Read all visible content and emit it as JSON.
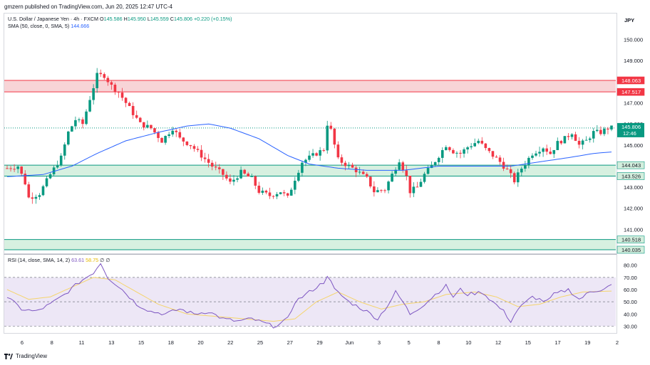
{
  "header": {
    "published_by": "gmzern published on TradingView.com, Jun 20, 2025 12:47 UTC-4"
  },
  "legend": {
    "symbol": "U.S. Dollar / Japanese Yen · 4h · FXCM",
    "o_label": "O",
    "o": "145.586",
    "h_label": "H",
    "h": "145.950",
    "l_label": "L",
    "l": "145.559",
    "c_label": "C",
    "c": "145.806",
    "change": "+0.220 (+0.15%)",
    "sma_label": "SMA (50, close, 0, SMA, 5)",
    "sma_value": "144.666"
  },
  "rsi_legend": {
    "label": "RSI (14, close, SMA, 14, 2)",
    "rsi_value": "63.61",
    "ma_value": "58.75",
    "extra": "∅ ∅"
  },
  "price_axis": {
    "currency": "JPY",
    "ticks": [
      "150.000",
      "149.000",
      "148.000",
      "147.000",
      "146.000",
      "145.000",
      "144.000",
      "143.000",
      "142.000",
      "141.000"
    ],
    "current_price": "145.806",
    "countdown": "12:46"
  },
  "rsi_axis": {
    "ticks": [
      "80.00",
      "70.00",
      "60.00",
      "50.00",
      "40.00",
      "30.00"
    ]
  },
  "time_axis": {
    "labels": [
      "6",
      "8",
      "11",
      "13",
      "15",
      "18",
      "20",
      "22",
      "25",
      "27",
      "29",
      "Jun",
      "3",
      "5",
      "8",
      "10",
      "12",
      "15",
      "17",
      "19",
      "2"
    ]
  },
  "colors": {
    "up": "#089981",
    "down": "#f23645",
    "sma": "#2962ff",
    "resistance_fill": "#f7cfd3",
    "resistance_line": "#f23645",
    "support_fill": "#d3eedd",
    "support_line": "#089981",
    "rsi": "#7e57c2",
    "rsi_ma": "#f5d46b",
    "rsi_band": "#ede7f6"
  },
  "zones": [
    {
      "type": "resistance",
      "top_label": "148.063",
      "bottom_label": "147.517",
      "top": 148.063,
      "bottom": 147.517
    },
    {
      "type": "support",
      "top_label": "144.043",
      "bottom_label": "143.526",
      "top": 144.043,
      "bottom": 143.526
    },
    {
      "type": "support",
      "top_label": "140.518",
      "bottom_label": "140.035",
      "top": 140.518,
      "bottom": 140.035
    }
  ],
  "chart_data": {
    "type": "candlestick",
    "series": [
      {
        "name": "U.S. Dollar / Japanese Yen",
        "anchors": [
          [
            0,
            143.9
          ],
          [
            3,
            144.0
          ],
          [
            5,
            143.2
          ],
          [
            6,
            142.5
          ],
          [
            9,
            142.7
          ],
          [
            12,
            143.6
          ],
          [
            15,
            144.4
          ],
          [
            17,
            145.6
          ],
          [
            19,
            146.2
          ],
          [
            21,
            146.0
          ],
          [
            23,
            147.2
          ],
          [
            25,
            148.3
          ],
          [
            27,
            148.3
          ],
          [
            29,
            147.8
          ],
          [
            31,
            147.5
          ],
          [
            33,
            147.0
          ],
          [
            35,
            146.5
          ],
          [
            37,
            146.0
          ],
          [
            40,
            145.8
          ],
          [
            43,
            145.2
          ],
          [
            46,
            145.8
          ],
          [
            48,
            145.3
          ],
          [
            51,
            145.0
          ],
          [
            54,
            144.5
          ],
          [
            57,
            144.0
          ],
          [
            60,
            143.6
          ],
          [
            62,
            143.2
          ],
          [
            65,
            143.7
          ],
          [
            68,
            143.4
          ],
          [
            70,
            142.8
          ],
          [
            73,
            142.6
          ],
          [
            76,
            142.8
          ],
          [
            78,
            142.5
          ],
          [
            80,
            143.4
          ],
          [
            82,
            144.2
          ],
          [
            85,
            144.5
          ],
          [
            88,
            144.8
          ],
          [
            89,
            146.0
          ],
          [
            90,
            145.7
          ],
          [
            91,
            145.0
          ],
          [
            92,
            144.3
          ],
          [
            95,
            144.0
          ],
          [
            97,
            143.8
          ],
          [
            100,
            143.4
          ],
          [
            102,
            142.8
          ],
          [
            105,
            142.9
          ],
          [
            107,
            143.6
          ],
          [
            109,
            144.3
          ],
          [
            111,
            143.5
          ],
          [
            112,
            142.8
          ],
          [
            114,
            143.0
          ],
          [
            116,
            143.6
          ],
          [
            118,
            144.0
          ],
          [
            120,
            144.5
          ],
          [
            122,
            145.0
          ],
          [
            124,
            144.7
          ],
          [
            126,
            144.6
          ],
          [
            128,
            144.9
          ],
          [
            131,
            145.2
          ],
          [
            133,
            144.8
          ],
          [
            135,
            144.5
          ],
          [
            137,
            144.2
          ],
          [
            139,
            143.8
          ],
          [
            141,
            143.3
          ],
          [
            143,
            143.9
          ],
          [
            146,
            144.6
          ],
          [
            149,
            144.9
          ],
          [
            151,
            144.6
          ],
          [
            153,
            145.1
          ],
          [
            155,
            145.3
          ],
          [
            157,
            145.6
          ],
          [
            159,
            145.0
          ],
          [
            161,
            145.2
          ],
          [
            163,
            145.6
          ],
          [
            165,
            145.6
          ],
          [
            167,
            145.8
          ],
          [
            168,
            145.81
          ]
        ]
      },
      {
        "name": "SMA (50, close, 0, SMA, 5)",
        "anchors": [
          [
            0,
            143.5
          ],
          [
            10,
            143.6
          ],
          [
            18,
            144.0
          ],
          [
            25,
            144.6
          ],
          [
            33,
            145.2
          ],
          [
            42,
            145.6
          ],
          [
            50,
            145.9
          ],
          [
            56,
            146.0
          ],
          [
            62,
            145.8
          ],
          [
            70,
            145.3
          ],
          [
            78,
            144.5
          ],
          [
            84,
            144.1
          ],
          [
            92,
            143.9
          ],
          [
            100,
            143.8
          ],
          [
            110,
            143.8
          ],
          [
            120,
            144.0
          ],
          [
            130,
            144.0
          ],
          [
            140,
            144.0
          ],
          [
            148,
            144.2
          ],
          [
            156,
            144.4
          ],
          [
            163,
            144.6
          ],
          [
            168,
            144.67
          ]
        ]
      },
      {
        "name": "RSI (14, close, SMA, 14, 2)",
        "anchors": [
          [
            0,
            54
          ],
          [
            4,
            44
          ],
          [
            8,
            42
          ],
          [
            12,
            48
          ],
          [
            16,
            56
          ],
          [
            20,
            66
          ],
          [
            24,
            74
          ],
          [
            26,
            82
          ],
          [
            28,
            70
          ],
          [
            32,
            60
          ],
          [
            36,
            48
          ],
          [
            40,
            42
          ],
          [
            44,
            40
          ],
          [
            48,
            44
          ],
          [
            52,
            40
          ],
          [
            56,
            42
          ],
          [
            60,
            36
          ],
          [
            64,
            34
          ],
          [
            68,
            36
          ],
          [
            72,
            32
          ],
          [
            74,
            30
          ],
          [
            76,
            32
          ],
          [
            78,
            36
          ],
          [
            80,
            50
          ],
          [
            84,
            58
          ],
          [
            88,
            66
          ],
          [
            89,
            72
          ],
          [
            91,
            60
          ],
          [
            95,
            50
          ],
          [
            100,
            42
          ],
          [
            103,
            36
          ],
          [
            106,
            48
          ],
          [
            108,
            58
          ],
          [
            110,
            50
          ],
          [
            112,
            40
          ],
          [
            116,
            48
          ],
          [
            119,
            56
          ],
          [
            122,
            63
          ],
          [
            124,
            54
          ],
          [
            126,
            60
          ],
          [
            128,
            56
          ],
          [
            132,
            58
          ],
          [
            135,
            50
          ],
          [
            138,
            42
          ],
          [
            140,
            34
          ],
          [
            142,
            44
          ],
          [
            146,
            54
          ],
          [
            150,
            50
          ],
          [
            152,
            56
          ],
          [
            156,
            60
          ],
          [
            159,
            52
          ],
          [
            162,
            58
          ],
          [
            165,
            60
          ],
          [
            168,
            63.6
          ]
        ]
      },
      {
        "name": "RSI MA",
        "anchors": [
          [
            0,
            60
          ],
          [
            6,
            52
          ],
          [
            12,
            54
          ],
          [
            18,
            62
          ],
          [
            24,
            70
          ],
          [
            30,
            68
          ],
          [
            36,
            58
          ],
          [
            42,
            48
          ],
          [
            50,
            40
          ],
          [
            58,
            38
          ],
          [
            66,
            36
          ],
          [
            74,
            34
          ],
          [
            80,
            36
          ],
          [
            86,
            50
          ],
          [
            92,
            58
          ],
          [
            98,
            50
          ],
          [
            104,
            44
          ],
          [
            110,
            48
          ],
          [
            116,
            50
          ],
          [
            122,
            56
          ],
          [
            130,
            58
          ],
          [
            136,
            54
          ],
          [
            142,
            46
          ],
          [
            148,
            48
          ],
          [
            154,
            54
          ],
          [
            160,
            58
          ],
          [
            168,
            58.8
          ]
        ]
      }
    ],
    "y_range": [
      139.9,
      151.2
    ],
    "rsi_range": [
      25,
      88
    ],
    "rsi_levels": [
      70,
      50,
      30
    ],
    "candle_count": 169,
    "x_labels": [
      "6",
      "8",
      "11",
      "13",
      "15",
      "18",
      "20",
      "22",
      "25",
      "27",
      "29",
      "Jun",
      "3",
      "5",
      "8",
      "10",
      "12",
      "15",
      "17",
      "19",
      "2"
    ]
  },
  "footer": {
    "brand": "TradingView"
  }
}
